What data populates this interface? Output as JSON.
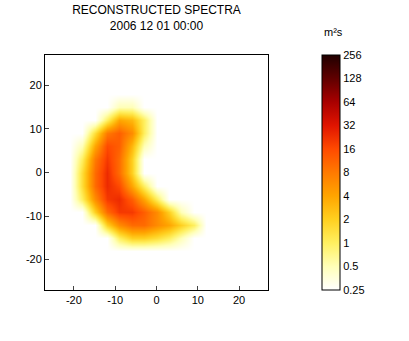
{
  "chart_data": {
    "type": "heatmap",
    "title": "RECONSTRUCTED SPECTRA",
    "subtitle": "2006 12 01 00:00",
    "x": [
      -27,
      -24,
      -21,
      -18,
      -15,
      -12,
      -9,
      -6,
      -3,
      0,
      3,
      6,
      9,
      12,
      15,
      18,
      21,
      24,
      27
    ],
    "y": [
      -27,
      -24,
      -21,
      -18,
      -15,
      -12,
      -9,
      -6,
      -3,
      0,
      3,
      6,
      9,
      12,
      15,
      18,
      21,
      24,
      27
    ],
    "cells": [
      [
        0.25,
        0.25,
        0.25,
        0.25,
        0.25,
        0.25,
        0.25,
        0.25,
        0.25,
        0.25,
        0.25,
        0.25,
        0.25,
        0.25,
        0.25,
        0.25,
        0.25,
        0.25,
        0.25
      ],
      [
        0.25,
        0.25,
        0.25,
        0.25,
        0.25,
        0.25,
        0.25,
        0.25,
        0.25,
        0.25,
        0.25,
        0.25,
        0.25,
        0.25,
        0.25,
        0.25,
        0.25,
        0.25,
        0.25
      ],
      [
        0.25,
        0.25,
        0.25,
        0.25,
        0.25,
        0.25,
        0.25,
        0.25,
        0.25,
        0.25,
        0.25,
        0.25,
        0.25,
        0.25,
        0.25,
        0.25,
        0.25,
        0.25,
        0.25
      ],
      [
        0.25,
        0.25,
        0.25,
        0.25,
        0.25,
        0.25,
        0.25,
        0.25,
        0.25,
        0.25,
        0.25,
        0.25,
        0.25,
        0.25,
        0.25,
        0.25,
        0.25,
        0.25,
        0.25
      ],
      [
        0.25,
        0.25,
        0.25,
        0.25,
        0.25,
        0.25,
        1,
        2,
        2,
        1.5,
        1,
        0.5,
        0.25,
        0.25,
        0.25,
        0.25,
        0.25,
        0.25,
        0.25
      ],
      [
        0.25,
        0.25,
        0.25,
        0.25,
        0.25,
        2,
        6,
        10,
        10,
        6,
        4,
        2,
        1,
        0.25,
        0.25,
        0.25,
        0.25,
        0.25,
        0.25
      ],
      [
        0.25,
        0.25,
        0.25,
        0.25,
        2,
        10,
        20,
        20,
        12,
        6,
        2,
        0.5,
        0.25,
        0.25,
        0.25,
        0.25,
        0.25,
        0.25,
        0.25
      ],
      [
        0.25,
        0.25,
        0.25,
        1,
        6,
        20,
        24,
        12,
        4,
        1,
        0.25,
        0.25,
        0.25,
        0.25,
        0.25,
        0.25,
        0.25,
        0.25,
        0.25
      ],
      [
        0.25,
        0.25,
        0.25,
        1.5,
        10,
        24,
        16,
        4,
        1,
        0.25,
        0.25,
        0.25,
        0.25,
        0.25,
        0.25,
        0.25,
        0.25,
        0.25,
        0.25
      ],
      [
        0.25,
        0.25,
        0.25,
        1.5,
        10,
        24,
        10,
        2,
        0.25,
        0.25,
        0.25,
        0.25,
        0.25,
        0.25,
        0.25,
        0.25,
        0.25,
        0.25,
        0.25
      ],
      [
        0.25,
        0.25,
        0.25,
        1,
        8,
        20,
        10,
        2,
        0.25,
        0.25,
        0.25,
        0.25,
        0.25,
        0.25,
        0.25,
        0.25,
        0.25,
        0.25,
        0.25
      ],
      [
        0.25,
        0.25,
        0.25,
        0.5,
        4,
        16,
        12,
        3,
        0.5,
        0.25,
        0.25,
        0.25,
        0.25,
        0.25,
        0.25,
        0.25,
        0.25,
        0.25,
        0.25
      ],
      [
        0.25,
        0.25,
        0.25,
        0.25,
        1.5,
        8,
        12,
        6,
        1,
        0.25,
        0.25,
        0.25,
        0.25,
        0.25,
        0.25,
        0.25,
        0.25,
        0.25,
        0.25
      ],
      [
        0.25,
        0.25,
        0.25,
        0.25,
        0.25,
        1,
        4,
        3,
        1,
        0.25,
        0.25,
        0.25,
        0.25,
        0.25,
        0.25,
        0.25,
        0.25,
        0.25,
        0.25
      ],
      [
        0.25,
        0.25,
        0.25,
        0.25,
        0.25,
        0.25,
        0.5,
        0.5,
        0.25,
        0.25,
        0.25,
        0.25,
        0.25,
        0.25,
        0.25,
        0.25,
        0.25,
        0.25,
        0.25
      ],
      [
        0.25,
        0.25,
        0.25,
        0.25,
        0.25,
        0.25,
        0.25,
        0.25,
        0.25,
        0.25,
        0.25,
        0.25,
        0.25,
        0.25,
        0.25,
        0.25,
        0.25,
        0.25,
        0.25
      ],
      [
        0.25,
        0.25,
        0.25,
        0.25,
        0.25,
        0.25,
        0.25,
        0.25,
        0.25,
        0.25,
        0.25,
        0.25,
        0.25,
        0.25,
        0.25,
        0.25,
        0.25,
        0.25,
        0.25
      ],
      [
        0.25,
        0.25,
        0.25,
        0.25,
        0.25,
        0.25,
        0.25,
        0.25,
        0.25,
        0.25,
        0.25,
        0.25,
        0.25,
        0.25,
        0.25,
        0.25,
        0.25,
        0.25,
        0.25
      ],
      [
        0.25,
        0.25,
        0.25,
        0.25,
        0.25,
        0.25,
        0.25,
        0.25,
        0.25,
        0.25,
        0.25,
        0.25,
        0.25,
        0.25,
        0.25,
        0.25,
        0.25,
        0.25,
        0.25
      ]
    ],
    "xlim": [
      -27,
      27
    ],
    "ylim": [
      -27,
      27
    ],
    "xticks": [
      -20,
      -10,
      0,
      10,
      20
    ],
    "yticks": [
      -20,
      -10,
      0,
      10,
      20
    ],
    "colorbar": {
      "label": "m²s",
      "range": [
        0.25,
        256
      ],
      "ticks": [
        0.25,
        0.5,
        1,
        2,
        4,
        8,
        16,
        32,
        64,
        128,
        256
      ]
    }
  }
}
